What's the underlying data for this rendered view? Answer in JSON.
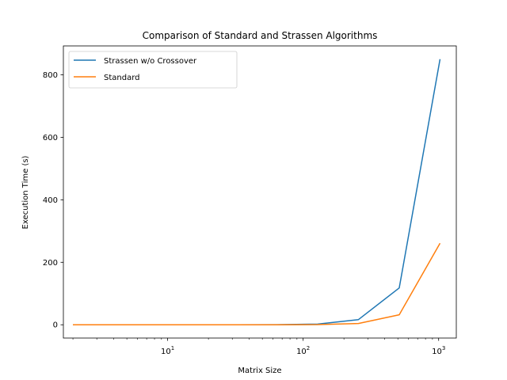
{
  "chart_data": {
    "type": "line",
    "title": "Comparison of Standard and Strassen Algorithms",
    "xlabel": "Matrix Size",
    "ylabel": "Execution Time (s)",
    "xscale": "log",
    "xlim": [
      1.7,
      1350
    ],
    "ylim": [
      -42.5,
      892.5
    ],
    "grid": false,
    "legend_position": "top-left",
    "x": [
      2,
      4,
      8,
      16,
      32,
      64,
      128,
      256,
      512,
      1024
    ],
    "x_ticks": [
      {
        "value": 10,
        "base": "10",
        "exp": "1"
      },
      {
        "value": 100,
        "base": "10",
        "exp": "2"
      },
      {
        "value": 1000,
        "base": "10",
        "exp": "3"
      }
    ],
    "y_ticks": [
      {
        "value": 0,
        "label": "0"
      },
      {
        "value": 200,
        "label": "200"
      },
      {
        "value": 400,
        "label": "400"
      },
      {
        "value": 600,
        "label": "600"
      },
      {
        "value": 800,
        "label": "800"
      }
    ],
    "series": [
      {
        "name": "Strassen w/o Crossover",
        "color": "#1f77b4",
        "values": [
          0,
          0,
          0,
          0,
          0,
          0.3,
          2.3,
          16.5,
          118,
          850
        ]
      },
      {
        "name": "Standard",
        "color": "#ff7f0e",
        "values": [
          0,
          0,
          0,
          0,
          0,
          0.1,
          0.6,
          4,
          32,
          261
        ]
      }
    ]
  }
}
